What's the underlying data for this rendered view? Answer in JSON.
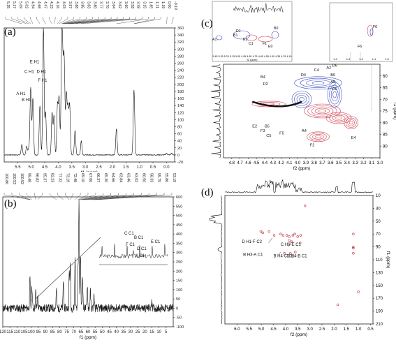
{
  "chart_data": [
    {
      "panel": "(a)",
      "type": "line",
      "title": "",
      "xlabel": "f1 (ppm)",
      "ylabel": "",
      "xlim": [
        6.0,
        -0.3
      ],
      "ylim": [
        -20,
        360
      ],
      "x_ticks": [
        "5.5",
        "5.0",
        "4.5",
        "4.0",
        "3.5",
        "3.0",
        "2.5",
        "2.0",
        "1.5",
        "1.0",
        "0.5",
        "0.0"
      ],
      "y_ticks": [
        "-20",
        "0",
        "20",
        "40",
        "60",
        "80",
        "100",
        "120",
        "140",
        "160",
        "180",
        "200",
        "220",
        "240",
        "260",
        "280",
        "300",
        "320",
        "340",
        "360"
      ],
      "peak_labels_top": [
        "5.35",
        "5.17",
        "5.09",
        "5.02",
        "4.94",
        "4.68",
        "4.47",
        "4.23",
        "4.16",
        "4.03",
        "3.97",
        "3.88",
        "3.85",
        "3.83",
        "3.80",
        "3.77",
        "3.70",
        "3.64",
        "3.62",
        "3.60",
        "3.58",
        "3.38",
        "3.15",
        "1.85",
        "1.21",
        "1.19",
        "0.00",
        "-0.19"
      ],
      "annotations": [
        "A H1",
        "B H1",
        "C H1",
        "E H1",
        "D H1",
        "F H1"
      ],
      "peaks": [
        {
          "ppm": 5.35,
          "intensity": 30
        },
        {
          "ppm": 5.17,
          "intensity": 25
        },
        {
          "ppm": 5.09,
          "intensity": 20
        },
        {
          "ppm": 5.02,
          "intensity": 190
        },
        {
          "ppm": 4.94,
          "intensity": 160
        },
        {
          "ppm": 4.68,
          "intensity": 140
        },
        {
          "ppm": 4.55,
          "intensity": 360
        },
        {
          "ppm": 4.47,
          "intensity": 120
        },
        {
          "ppm": 4.23,
          "intensity": 120
        },
        {
          "ppm": 4.16,
          "intensity": 110
        },
        {
          "ppm": 4.03,
          "intensity": 140
        },
        {
          "ppm": 3.97,
          "intensity": 160
        },
        {
          "ppm": 3.88,
          "intensity": 200
        },
        {
          "ppm": 3.85,
          "intensity": 230
        },
        {
          "ppm": 3.8,
          "intensity": 190
        },
        {
          "ppm": 3.77,
          "intensity": 150
        },
        {
          "ppm": 3.7,
          "intensity": 170
        },
        {
          "ppm": 3.64,
          "intensity": 130
        },
        {
          "ppm": 3.58,
          "intensity": 140
        },
        {
          "ppm": 3.38,
          "intensity": 70
        },
        {
          "ppm": 3.15,
          "intensity": 40
        },
        {
          "ppm": 1.85,
          "intensity": 75
        },
        {
          "ppm": 1.21,
          "intensity": 110
        },
        {
          "ppm": 1.19,
          "intensity": 90
        },
        {
          "ppm": 0.0,
          "intensity": 5
        },
        {
          "ppm": -0.19,
          "intensity": 5
        }
      ]
    },
    {
      "panel": "(b)",
      "type": "line",
      "title": "",
      "xlabel": "f1 (ppm)",
      "ylabel": "",
      "xlim": [
        120,
        0
      ],
      "ylim": [
        -100,
        600
      ],
      "x_ticks": [
        "120",
        "115",
        "110",
        "105",
        "100",
        "95",
        "90",
        "85",
        "80",
        "75",
        "70",
        "65",
        "60",
        "55",
        "50",
        "45",
        "40",
        "35",
        "30",
        "25",
        "20",
        "15",
        "10",
        "5"
      ],
      "y_ticks": [
        "-100",
        "-50",
        "0",
        "50",
        "100",
        "150",
        "200",
        "250",
        "300",
        "350",
        "400",
        "450",
        "500",
        "550",
        "600"
      ],
      "peak_labels_top": [
        "100.86",
        "100.53",
        "100.52",
        "99.48",
        "96.82",
        "95.37",
        "82.23",
        "77.32",
        "73.19",
        "72.48",
        "69.10",
        "67.06",
        "66.37",
        "65.30",
        "64.66",
        "63.84",
        "63.46",
        "63.02",
        "60.50",
        "58.33",
        "55.75",
        "55.86",
        "53.19"
      ],
      "annotations": [
        "C C1",
        "B C1",
        "F C1",
        "D C1",
        "A C1",
        "E C1"
      ],
      "peaks": [
        {
          "ppm": 100.86,
          "intensity": 160
        },
        {
          "ppm": 99.48,
          "intensity": 120
        },
        {
          "ppm": 96.82,
          "intensity": 90
        },
        {
          "ppm": 95.37,
          "intensity": 80
        },
        {
          "ppm": 82.23,
          "intensity": 100
        },
        {
          "ppm": 77.32,
          "intensity": 150
        },
        {
          "ppm": 73.19,
          "intensity": 200
        },
        {
          "ppm": 72.48,
          "intensity": 230
        },
        {
          "ppm": 69.1,
          "intensity": 280
        },
        {
          "ppm": 67.06,
          "intensity": 220
        },
        {
          "ppm": 66.37,
          "intensity": 580
        },
        {
          "ppm": 65.3,
          "intensity": 300
        },
        {
          "ppm": 63.84,
          "intensity": 180
        },
        {
          "ppm": 60.5,
          "intensity": 130
        },
        {
          "ppm": 58.33,
          "intensity": 90
        },
        {
          "ppm": 55.75,
          "intensity": 70
        },
        {
          "ppm": 15.0,
          "intensity": 50
        }
      ]
    },
    {
      "panel": "(c)",
      "type": "heatmap",
      "title": "",
      "xlabel": "f2 (ppm)",
      "ylabel": "f1 (ppm)",
      "xlim": [
        4.9,
        3.0
      ],
      "ylim": [
        55,
        95
      ],
      "x_ticks": [
        "4.8",
        "4.7",
        "4.6",
        "4.5",
        "4.4",
        "4.3",
        "4.2",
        "4.1",
        "4.0",
        "3.9",
        "3.8",
        "3.7",
        "3.6",
        "3.5",
        "3.4",
        "3.3",
        "3.2",
        "3.1",
        "3.0"
      ],
      "y_ticks": [
        "60",
        "65",
        "70",
        "75",
        "80",
        "85",
        "90"
      ],
      "inset_x_ticks": [
        "5.45",
        "5.35",
        "5.25",
        "5.15",
        "5.05",
        "4.95",
        "4.85",
        "4.75",
        "4.65",
        "4.55",
        "4.45",
        "4.35",
        "4.25",
        "4.15"
      ],
      "inset_x_label": "f2 (ppm)",
      "inset_right_x_ticks": [
        "1.4",
        "1.3",
        "1.2",
        "1.1",
        "1.0"
      ],
      "annotations": [
        "A1",
        "B1",
        "E1",
        "D1",
        "C1",
        "F1",
        "E0",
        "B0",
        "F6",
        "F6",
        "D4",
        "C4",
        "A2",
        "D6",
        "B6",
        "A5",
        "C6",
        "B4",
        "D2",
        "E2",
        "F3",
        "B5",
        "C5",
        "F5",
        "A4",
        "F2",
        "E4"
      ],
      "colors": {
        "positive": "#d04050",
        "negative": "#3b4fc0"
      }
    },
    {
      "panel": "(d)",
      "type": "heatmap",
      "title": "",
      "xlabel": "f2 (ppm)",
      "ylabel": "f1 (ppm)",
      "xlim": [
        6.5,
        0.4
      ],
      "ylim": [
        10,
        210
      ],
      "x_ticks": [
        "6.0",
        "5.5",
        "5.0",
        "4.5",
        "4.0",
        "3.5",
        "3.0",
        "2.5",
        "2.0",
        "1.5",
        "1.0",
        "0.5"
      ],
      "y_ticks": [
        "10",
        "30",
        "50",
        "70",
        "90",
        "110",
        "130",
        "150",
        "170",
        "190",
        "210"
      ],
      "annotations": [
        "D H1-F C2",
        "C H6-E C1",
        "B H3-A C1",
        "B H4-C C1",
        "D H4-B C1"
      ],
      "colors": {
        "positive": "#c03040"
      }
    }
  ]
}
